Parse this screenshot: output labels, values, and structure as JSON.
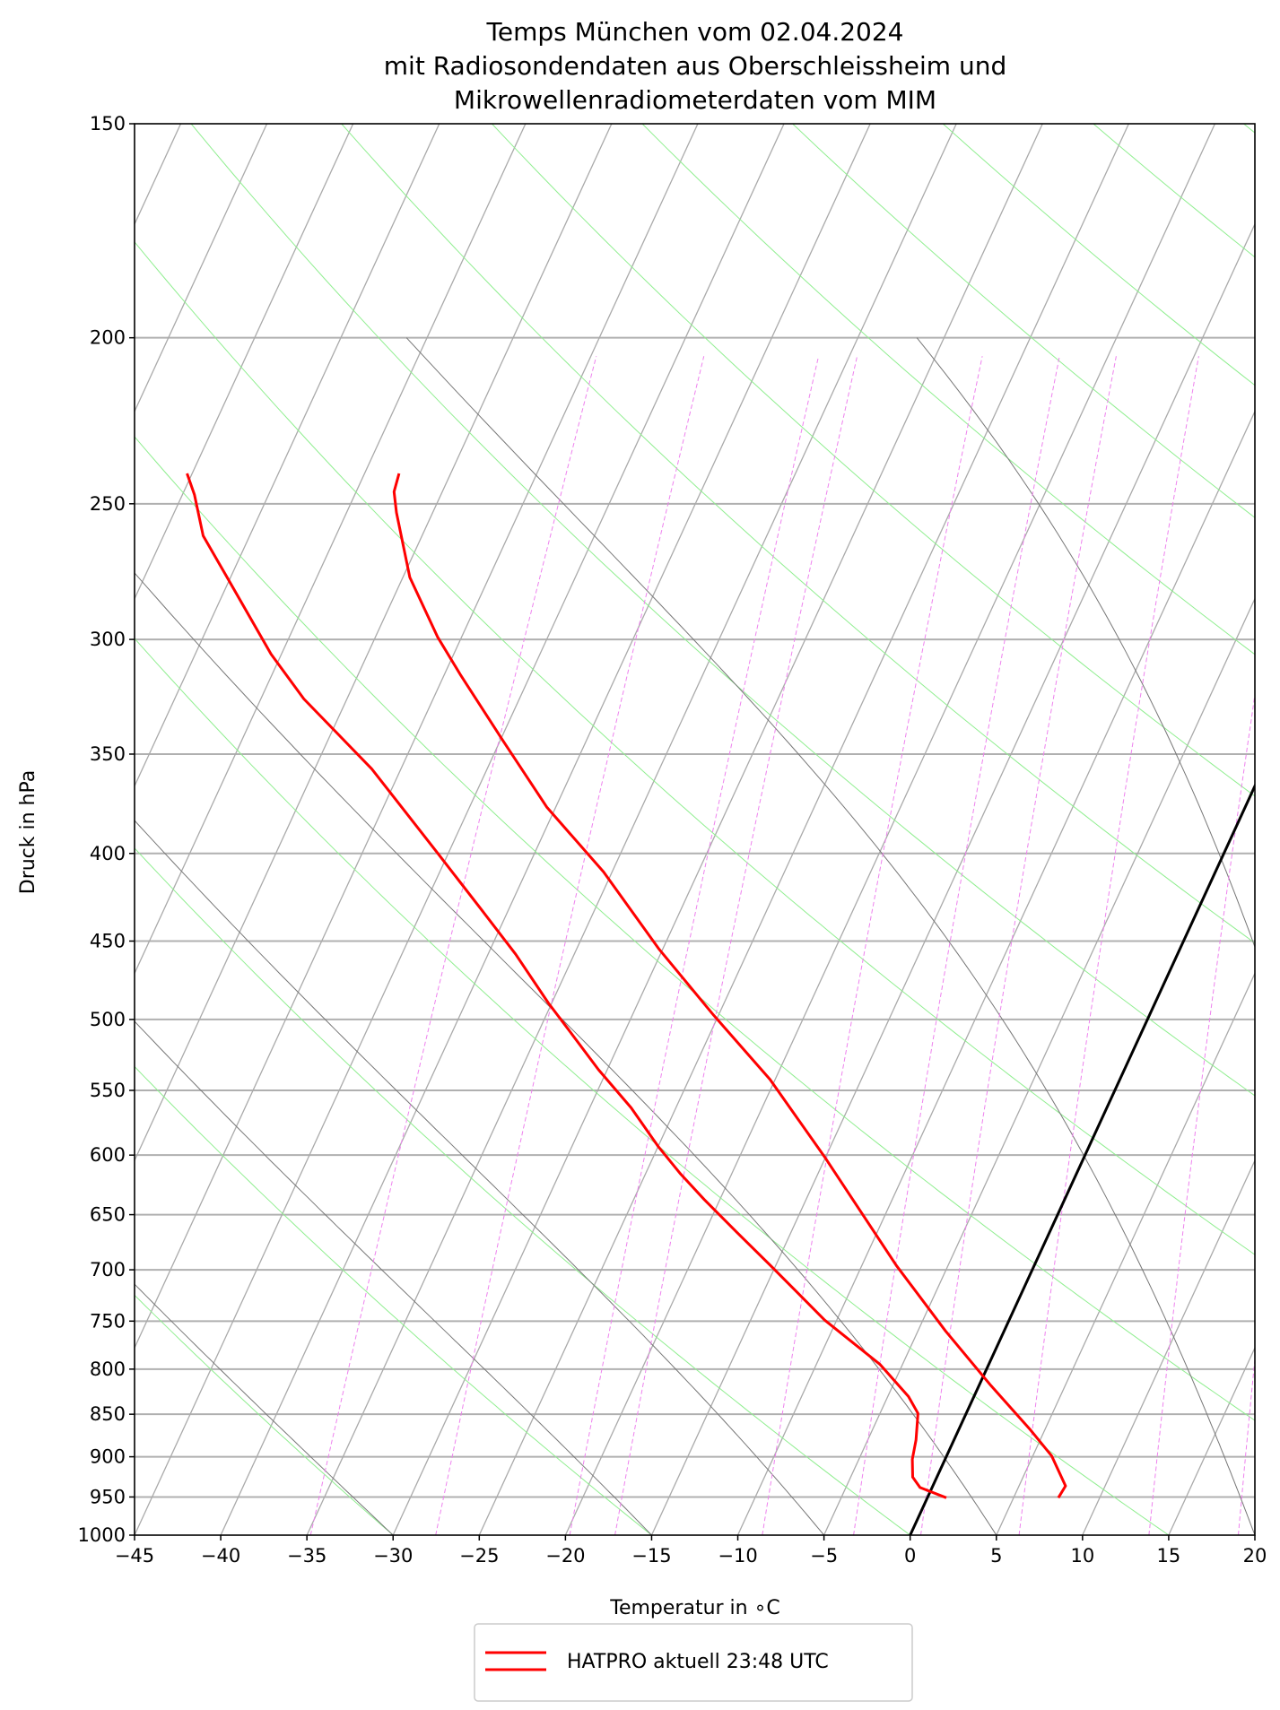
{
  "chart_data": {
    "type": "line",
    "subtype": "skew-T log-p diagram",
    "title": [
      "Temps München vom 02.04.2024",
      "mit Radiosondendaten aus Oberschleissheim und",
      "Mikrowellenradiometerdaten vom MIM"
    ],
    "xlabel": "Temperatur in $^\\circ$C",
    "xlabel_display": "Temperatur in ∘C",
    "ylabel": "Druck in hPa",
    "xlim": [
      -45,
      20
    ],
    "ylim": [
      1000,
      150
    ],
    "yscale": "log",
    "xticks": [
      -45,
      -40,
      -35,
      -30,
      -25,
      -20,
      -15,
      -10,
      -5,
      0,
      5,
      10,
      15,
      20
    ],
    "xtick_labels": [
      "−45",
      "−40",
      "−35",
      "−30",
      "−25",
      "−20",
      "−15",
      "−10",
      "−5",
      "0",
      "5",
      "10",
      "15",
      "20"
    ],
    "yticks": [
      150,
      200,
      250,
      300,
      350,
      400,
      450,
      500,
      550,
      600,
      650,
      700,
      750,
      800,
      850,
      900,
      950,
      1000
    ],
    "ytick_labels": [
      "150",
      "200",
      "250",
      "300",
      "350",
      "400",
      "450",
      "500",
      "550",
      "600",
      "650",
      "700",
      "750",
      "800",
      "850",
      "900",
      "950",
      "1000"
    ],
    "grid": true,
    "legend": {
      "position": "bottom-center, below plot",
      "label": "HATPRO aktuell 23:48 UTC"
    },
    "series": [
      {
        "role": "temperature",
        "color": "#ff0000",
        "points_p_T": [
          [
            951,
            7.6
          ],
          [
            936,
            7.7
          ],
          [
            899,
            6.1
          ],
          [
            867,
            4.1
          ],
          [
            818,
            0.7
          ],
          [
            760,
            -3.4
          ],
          [
            696,
            -8.0
          ],
          [
            601,
            -15.1
          ],
          [
            542,
            -20.3
          ],
          [
            497,
            -25.3
          ],
          [
            455,
            -30.2
          ],
          [
            410,
            -35.5
          ],
          [
            376,
            -40.5
          ],
          [
            344,
            -44.8
          ],
          [
            315,
            -49.0
          ],
          [
            299,
            -51.4
          ],
          [
            276,
            -54.6
          ],
          [
            253,
            -57.1
          ],
          [
            246,
            -57.8
          ],
          [
            240,
            -58.0
          ]
        ]
      },
      {
        "role": "dewpoint",
        "color": "#ff0000",
        "points_p_T": [
          [
            951,
            1.1
          ],
          [
            938,
            -0.7
          ],
          [
            925,
            -1.4
          ],
          [
            903,
            -1.9
          ],
          [
            880,
            -2.2
          ],
          [
            849,
            -2.8
          ],
          [
            830,
            -3.8
          ],
          [
            795,
            -6.3
          ],
          [
            749,
            -10.7
          ],
          [
            696,
            -15.3
          ],
          [
            666,
            -18.1
          ],
          [
            637,
            -20.9
          ],
          [
            615,
            -23.0
          ],
          [
            593,
            -25.0
          ],
          [
            563,
            -27.6
          ],
          [
            535,
            -30.5
          ],
          [
            508,
            -33.2
          ],
          [
            489,
            -35.2
          ],
          [
            458,
            -38.4
          ],
          [
            432,
            -41.5
          ],
          [
            400,
            -45.6
          ],
          [
            357,
            -51.7
          ],
          [
            325,
            -57.5
          ],
          [
            306,
            -60.6
          ],
          [
            276,
            -65.2
          ],
          [
            261,
            -67.7
          ],
          [
            247,
            -69.3
          ],
          [
            240,
            -70.3
          ]
        ]
      }
    ],
    "reference_lines": {
      "zero_isotherm": {
        "T": 0,
        "color": "#000000"
      },
      "isotherms_step_C": 5,
      "isotherm_color": "#aaaaaa",
      "dry_adiabats_T1000_C": [
        -60,
        -45,
        -30,
        -15,
        0,
        15,
        30,
        45,
        60,
        75,
        90,
        105,
        120,
        135,
        150,
        165,
        180
      ],
      "dry_adiabat_color": "#90ee90",
      "moist_adiabats_T1000_C": [
        -30,
        -15,
        -5,
        5,
        20,
        30
      ],
      "moist_adiabat_color": "#777777",
      "mixing_ratios_gkg": [
        0.2,
        0.4,
        0.8,
        1,
        2,
        3,
        4,
        6,
        10,
        14
      ],
      "mixing_ratio_color": "#ee82ee"
    }
  }
}
